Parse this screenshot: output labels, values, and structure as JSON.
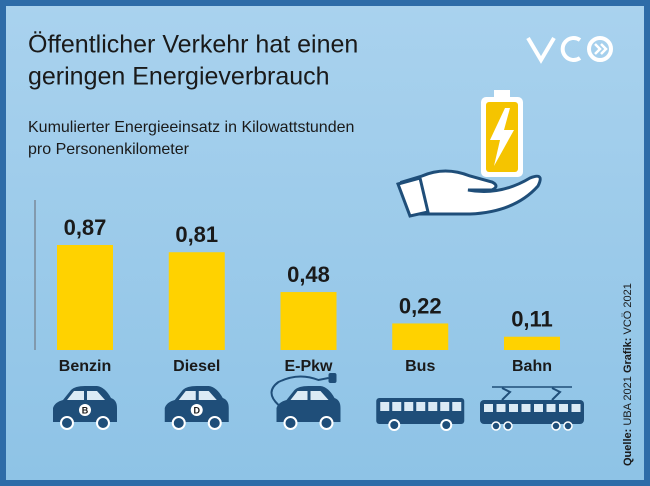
{
  "chart_data": {
    "type": "bar",
    "title": [
      "Öffentlicher Verkehr hat einen",
      "geringen Energieverbrauch"
    ],
    "subtitle": [
      "Kumulierter Energieeinsatz in Kilowattstunden",
      "pro Personenkilometer"
    ],
    "categories": [
      "Benzin",
      "Diesel",
      "E-Pkw",
      "Bus",
      "Bahn"
    ],
    "values": [
      0.87,
      0.81,
      0.48,
      0.22,
      0.11
    ],
    "value_labels": [
      "0,87",
      "0,81",
      "0,48",
      "0,22",
      "0,11"
    ],
    "icon_labels": [
      "B",
      "D",
      null,
      null,
      null
    ],
    "color": "#ffd200",
    "source_label": "Quelle:",
    "source": "UBA 2021",
    "credit_label": "Grafik:",
    "credit": "VCÖ 2021"
  }
}
